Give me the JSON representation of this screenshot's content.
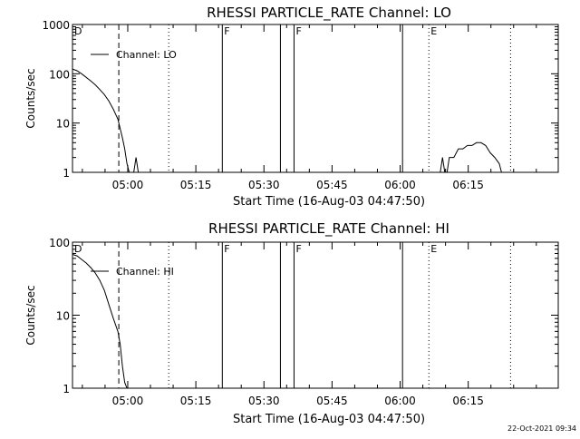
{
  "footer": {
    "timestamp": "22-Oct-2021 09:34"
  },
  "chart_data": [
    {
      "type": "line",
      "title": "RHESSI PARTICLE_RATE Channel: LO",
      "xlabel": "Start Time (16-Aug-03 04:47:50)",
      "ylabel": "Counts/sec",
      "x_unit": "minutes since 04:47:50",
      "xlim": [
        0,
        107
      ],
      "ylim": [
        1,
        1000
      ],
      "yscale": "log",
      "x_ticks": [
        {
          "label": "05:00",
          "value": 12.17
        },
        {
          "label": "05:15",
          "value": 27.17
        },
        {
          "label": "05:30",
          "value": 42.17
        },
        {
          "label": "05:45",
          "value": 57.17
        },
        {
          "label": "06:00",
          "value": 72.17
        },
        {
          "label": "06:15",
          "value": 87.17
        }
      ],
      "y_ticks": [
        {
          "label": "1",
          "value": 1
        },
        {
          "label": "10",
          "value": 10
        },
        {
          "label": "100",
          "value": 100
        },
        {
          "label": "1000",
          "value": 1000
        }
      ],
      "legend": {
        "label": "Channel: LO",
        "position": "top-left"
      },
      "series": [
        {
          "name": "Channel: LO",
          "segments": [
            [
              [
                0,
                125
              ],
              [
                1,
                115
              ],
              [
                2,
                100
              ],
              [
                3,
                85
              ],
              [
                4,
                72
              ],
              [
                5,
                60
              ],
              [
                6,
                48
              ],
              [
                7,
                38
              ],
              [
                8,
                28
              ],
              [
                9,
                19
              ],
              [
                10,
                12
              ],
              [
                11,
                5
              ],
              [
                11.5,
                3
              ],
              [
                12,
                1.5
              ],
              [
                12.5,
                1
              ]
            ],
            [
              [
                13.5,
                1
              ],
              [
                14,
                2
              ],
              [
                14.5,
                1
              ]
            ],
            [
              [
                81,
                1
              ],
              [
                81.5,
                2
              ],
              [
                82,
                1
              ]
            ],
            [
              [
                82.5,
                1
              ],
              [
                83,
                2
              ],
              [
                84,
                2
              ],
              [
                85,
                3
              ],
              [
                86,
                3
              ],
              [
                87,
                3.5
              ],
              [
                88,
                3.5
              ],
              [
                89,
                4
              ],
              [
                90,
                4
              ],
              [
                91,
                3.5
              ],
              [
                92,
                2.5
              ],
              [
                93,
                2
              ],
              [
                94,
                1.5
              ],
              [
                94.5,
                1
              ]
            ]
          ]
        }
      ],
      "markers": [
        {
          "label": "D",
          "x": 0
        },
        {
          "label": "F",
          "x": 33
        },
        {
          "label": "F",
          "x": 48.8
        },
        {
          "label": "E",
          "x": 78.5
        }
      ],
      "vlines": [
        {
          "x": 10.2,
          "style": "dashed"
        },
        {
          "x": 21.2,
          "style": "dotted"
        },
        {
          "x": 33,
          "style": "solid"
        },
        {
          "x": 45.8,
          "style": "solid"
        },
        {
          "x": 48.8,
          "style": "solid"
        },
        {
          "x": 72.7,
          "style": "solid"
        },
        {
          "x": 78.5,
          "style": "dotted"
        },
        {
          "x": 96.5,
          "style": "dotted"
        }
      ]
    },
    {
      "type": "line",
      "title": "RHESSI PARTICLE_RATE Channel: HI",
      "xlabel": "Start Time (16-Aug-03 04:47:50)",
      "ylabel": "Counts/sec",
      "x_unit": "minutes since 04:47:50",
      "xlim": [
        0,
        107
      ],
      "ylim": [
        1,
        100
      ],
      "yscale": "log",
      "x_ticks": [
        {
          "label": "05:00",
          "value": 12.17
        },
        {
          "label": "05:15",
          "value": 27.17
        },
        {
          "label": "05:30",
          "value": 42.17
        },
        {
          "label": "05:45",
          "value": 57.17
        },
        {
          "label": "06:00",
          "value": 72.17
        },
        {
          "label": "06:15",
          "value": 87.17
        }
      ],
      "y_ticks": [
        {
          "label": "1",
          "value": 1
        },
        {
          "label": "10",
          "value": 10
        },
        {
          "label": "100",
          "value": 100
        }
      ],
      "legend": {
        "label": "Channel: HI",
        "position": "top-left"
      },
      "series": [
        {
          "name": "Channel: HI",
          "segments": [
            [
              [
                0,
                68
              ],
              [
                1,
                65
              ],
              [
                2,
                58
              ],
              [
                3,
                52
              ],
              [
                4,
                45
              ],
              [
                5,
                38
              ],
              [
                6,
                30
              ],
              [
                7,
                22
              ],
              [
                8,
                14
              ],
              [
                9,
                9
              ],
              [
                10,
                6
              ],
              [
                10.5,
                4
              ],
              [
                11,
                2
              ],
              [
                11.5,
                1.2
              ],
              [
                12,
                1
              ]
            ]
          ]
        }
      ],
      "markers": [
        {
          "label": "D",
          "x": 0
        },
        {
          "label": "F",
          "x": 33
        },
        {
          "label": "F",
          "x": 48.8
        },
        {
          "label": "E",
          "x": 78.5
        }
      ],
      "vlines": [
        {
          "x": 10.2,
          "style": "dashed"
        },
        {
          "x": 21.2,
          "style": "dotted"
        },
        {
          "x": 33,
          "style": "solid"
        },
        {
          "x": 45.8,
          "style": "solid"
        },
        {
          "x": 48.8,
          "style": "solid"
        },
        {
          "x": 72.7,
          "style": "solid"
        },
        {
          "x": 78.5,
          "style": "dotted"
        },
        {
          "x": 96.5,
          "style": "dotted"
        }
      ]
    }
  ]
}
